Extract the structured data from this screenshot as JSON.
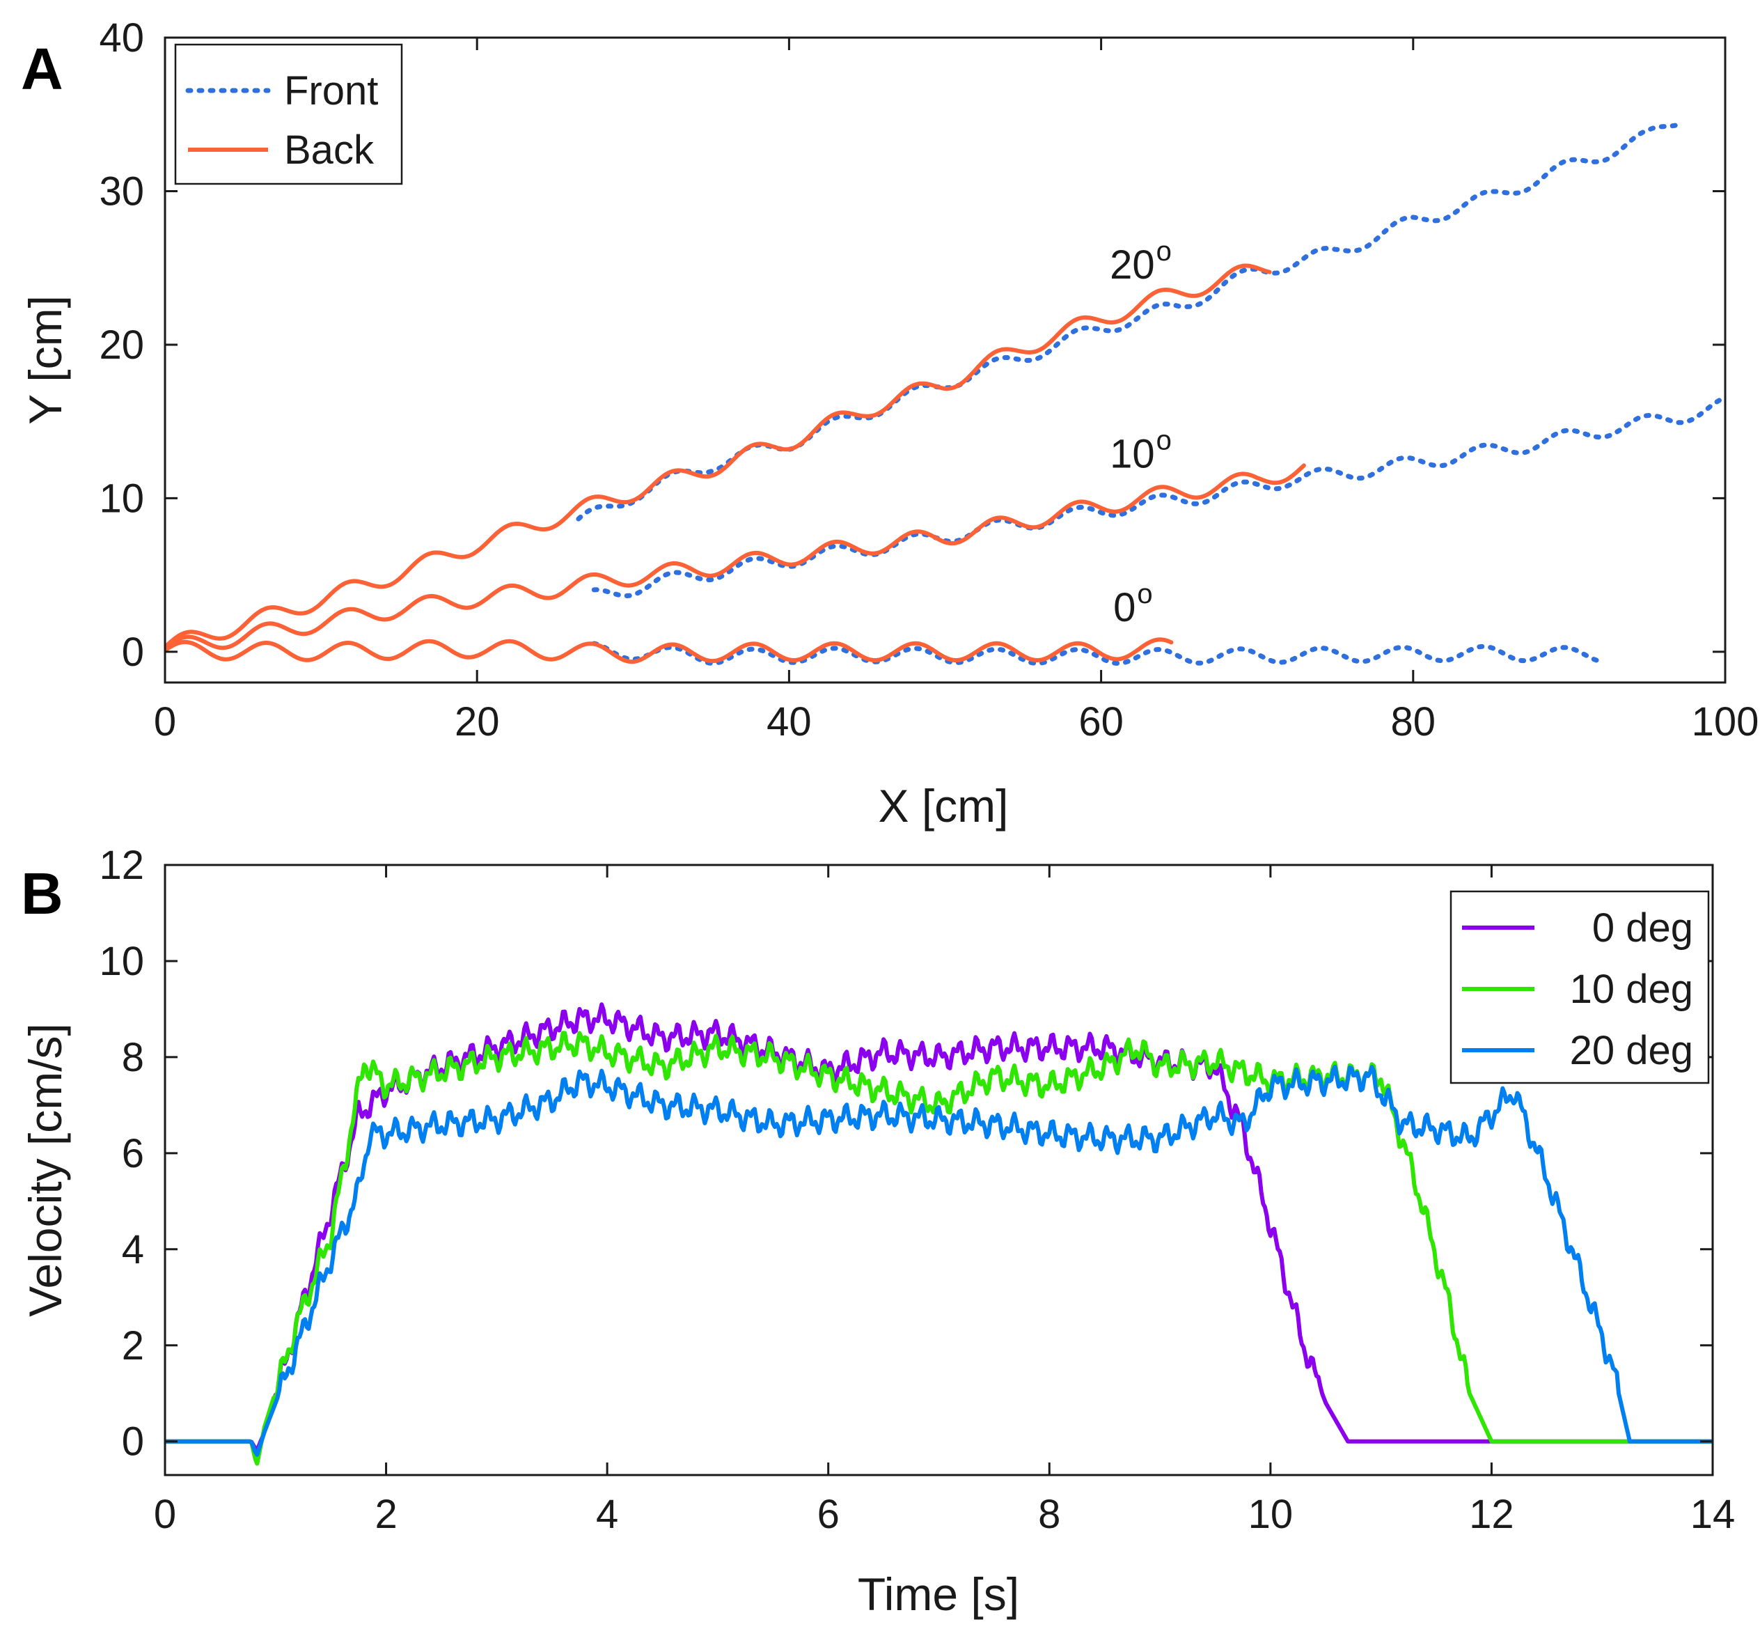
{
  "chart_data": [
    {
      "panel": "A",
      "type": "line",
      "xlabel": "X [cm]",
      "ylabel": "Y [cm]",
      "xlim": [
        0,
        100
      ],
      "ylim": [
        -2,
        40
      ],
      "xticks": [
        0,
        20,
        40,
        60,
        80,
        100
      ],
      "yticks": [
        0,
        10,
        20,
        30,
        40
      ],
      "grid": false,
      "legend_position": "top-left",
      "legend": [
        {
          "label": "Front",
          "color": "#2f6fde",
          "style": "dotted"
        },
        {
          "label": "Back",
          "color": "#fd6237",
          "style": "solid"
        }
      ],
      "annotations": [
        {
          "text": "20",
          "sup": "o",
          "x": 62,
          "y": 24.3
        },
        {
          "text": "10",
          "sup": "o",
          "x": 62,
          "y": 12
        },
        {
          "text": "0",
          "sup": "o",
          "x": 61.5,
          "y": 2
        }
      ],
      "series": [
        {
          "name": "Front",
          "group": "20",
          "color": "#2f6fde",
          "style": "dotted",
          "x": [
            26.5,
            30,
            35,
            40,
            45,
            50,
            55,
            60,
            65,
            70,
            75,
            80,
            85,
            90,
            95,
            97
          ],
          "y": [
            8.4,
            10.2,
            12.2,
            13.6,
            15.6,
            17.5,
            19.2,
            21.1,
            22.5,
            24.8,
            26.0,
            28.0,
            29.6,
            31.6,
            33.5,
            34.7
          ]
        },
        {
          "name": "Back",
          "group": "20",
          "color": "#fd6237",
          "style": "solid",
          "x": [
            0,
            5,
            10,
            15,
            20,
            25,
            30,
            35,
            40,
            45,
            50,
            55,
            60,
            65,
            70.8
          ],
          "y": [
            0.3,
            1.8,
            3.4,
            5.1,
            7.0,
            8.7,
            10.4,
            12.0,
            13.7,
            15.8,
            17.5,
            19.8,
            21.7,
            23.4,
            25.1
          ]
        },
        {
          "name": "Front",
          "group": "10",
          "color": "#2f6fde",
          "style": "dotted",
          "x": [
            27.5,
            32,
            37,
            42,
            47,
            52,
            57,
            62,
            67,
            72,
            77,
            82,
            87,
            92,
            97,
            100
          ],
          "y": [
            3.6,
            4.6,
            5.5,
            6.3,
            7.0,
            7.9,
            8.7,
            9.5,
            10.2,
            11.2,
            11.8,
            12.6,
            13.4,
            14.4,
            15.3,
            16.1
          ]
        },
        {
          "name": "Back",
          "group": "10",
          "color": "#fd6237",
          "style": "solid",
          "x": [
            0,
            5,
            10,
            15,
            20,
            25,
            30,
            35,
            40,
            45,
            50,
            55,
            60,
            65,
            70,
            73
          ],
          "y": [
            0.2,
            1.0,
            1.9,
            2.8,
            3.5,
            4.1,
            4.9,
            5.5,
            6.2,
            6.9,
            7.5,
            8.5,
            9.5,
            10.4,
            11.2,
            12.0
          ]
        },
        {
          "name": "Front",
          "group": "0",
          "color": "#2f6fde",
          "style": "dotted",
          "x": [
            27.5,
            35,
            45,
            55,
            65,
            75,
            85,
            92
          ],
          "y": [
            0.1,
            -0.3,
            -0.2,
            -0.3,
            -0.3,
            -0.2,
            -0.1,
            -0.2
          ]
        },
        {
          "name": "Back",
          "group": "0",
          "color": "#fd6237",
          "style": "solid",
          "x": [
            0,
            10,
            20,
            30,
            40,
            50,
            60,
            64.5
          ],
          "y": [
            0.1,
            0.0,
            0.2,
            -0.1,
            0.0,
            0.0,
            0.0,
            0.3
          ]
        }
      ]
    },
    {
      "panel": "B",
      "type": "line",
      "xlabel": "Time [s]",
      "ylabel": "Velocity [cm/s]",
      "xlim": [
        0,
        14
      ],
      "ylim": [
        -0.7,
        12
      ],
      "xticks": [
        0,
        2,
        4,
        6,
        8,
        10,
        12,
        14
      ],
      "yticks": [
        0,
        2,
        4,
        6,
        8,
        10,
        12
      ],
      "grid": false,
      "legend_position": "top-right",
      "legend": [
        {
          "label": "0 deg",
          "color": "#8c00f0"
        },
        {
          "label": "10 deg",
          "color": "#2ee600"
        },
        {
          "label": "20 deg",
          "color": "#0080f0"
        }
      ],
      "series": [
        {
          "name": "0 deg",
          "color": "#8c00f0",
          "x": [
            0,
            0.78,
            0.83,
            0.9,
            1.2,
            1.5,
            1.75,
            2.0,
            2.5,
            3.0,
            3.5,
            3.75,
            4.0,
            4.5,
            5.0,
            5.5,
            6.0,
            6.5,
            7.0,
            7.5,
            8.0,
            8.5,
            9.0,
            9.5,
            9.75,
            10.0,
            10.3,
            10.5,
            10.7,
            11.0,
            12.0,
            14.0
          ],
          "y": [
            0.0,
            0.0,
            -0.2,
            0.2,
            2.5,
            4.8,
            6.8,
            7.3,
            7.8,
            8.2,
            8.6,
            8.8,
            8.8,
            8.4,
            8.5,
            8.1,
            7.7,
            8.1,
            8.0,
            8.2,
            8.2,
            8.2,
            7.9,
            7.8,
            6.5,
            4.5,
            2.0,
            0.8,
            0.0,
            0.0,
            0.0,
            0.0
          ]
        },
        {
          "name": "10 deg",
          "color": "#2ee600",
          "x": [
            0,
            0.78,
            0.83,
            0.9,
            1.2,
            1.5,
            1.8,
            2.0,
            2.5,
            3.0,
            3.5,
            3.75,
            4.0,
            4.5,
            5.0,
            5.5,
            6.0,
            6.5,
            7.0,
            7.5,
            8.0,
            8.5,
            8.8,
            9.0,
            9.5,
            10.0,
            10.5,
            11.0,
            11.3,
            11.6,
            11.8,
            12.0,
            14.0
          ],
          "y": [
            0.0,
            0.0,
            -0.5,
            0.3,
            2.5,
            4.3,
            7.9,
            7.4,
            7.7,
            8.0,
            8.2,
            8.3,
            8.1,
            7.8,
            8.2,
            8.0,
            7.6,
            7.3,
            7.0,
            7.6,
            7.4,
            7.8,
            8.2,
            7.8,
            7.9,
            7.5,
            7.6,
            7.6,
            5.5,
            3.0,
            1.0,
            0.0,
            0.0
          ]
        },
        {
          "name": "20 deg",
          "color": "#0080f0",
          "x": [
            0,
            0.78,
            0.83,
            0.9,
            1.2,
            1.5,
            1.75,
            1.85,
            2.0,
            2.5,
            3.0,
            3.5,
            3.75,
            4.0,
            4.5,
            5.0,
            5.5,
            6.0,
            6.5,
            7.0,
            7.5,
            8.0,
            8.5,
            9.0,
            9.5,
            9.75,
            10.0,
            10.5,
            10.9,
            11.2,
            11.5,
            11.8,
            12.2,
            12.5,
            12.8,
            13.1,
            13.25,
            14.0
          ],
          "y": [
            0.0,
            0.0,
            -0.3,
            0.2,
            2.0,
            3.8,
            5.2,
            6.4,
            6.4,
            6.6,
            6.7,
            7.1,
            7.5,
            7.4,
            7.0,
            6.9,
            6.6,
            6.7,
            6.8,
            6.7,
            6.6,
            6.4,
            6.3,
            6.3,
            6.8,
            6.6,
            7.4,
            7.5,
            7.6,
            6.6,
            6.5,
            6.3,
            7.3,
            5.5,
            3.5,
            1.5,
            0.0,
            0.0
          ]
        }
      ]
    }
  ]
}
